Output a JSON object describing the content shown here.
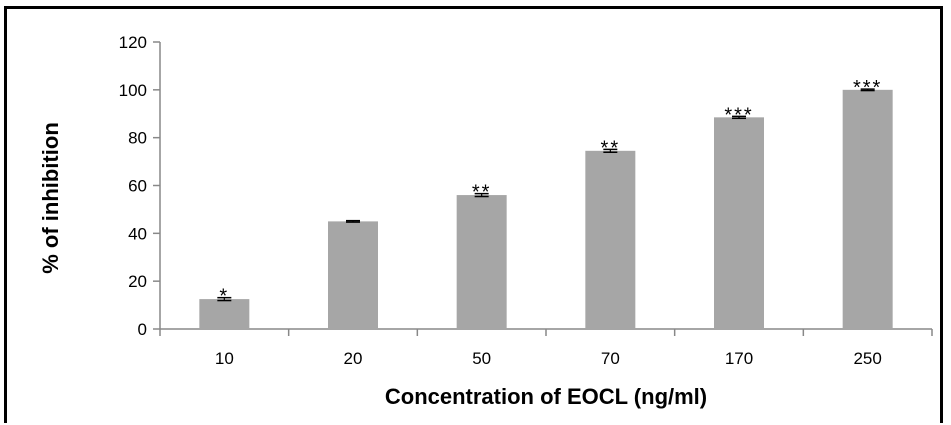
{
  "chart_data": {
    "type": "bar",
    "categories": [
      "10",
      "20",
      "50",
      "70",
      "170",
      "250"
    ],
    "values": [
      12.5,
      45,
      56,
      74.5,
      88.5,
      100
    ],
    "errors": [
      0.6,
      0.3,
      0.6,
      0.6,
      0.4,
      0.3
    ],
    "significance": [
      "*",
      "",
      "**",
      "**",
      "***",
      "***"
    ],
    "xlabel": "Concentration of EOCL (ng/ml)",
    "ylabel": "% of inhibition",
    "ylim": [
      0,
      120
    ],
    "yticks": [
      "0",
      "20",
      "40",
      "60",
      "80",
      "100",
      "120"
    ],
    "grid": false,
    "bar_color": "#a6a6a6",
    "axis_color": "#888888"
  }
}
